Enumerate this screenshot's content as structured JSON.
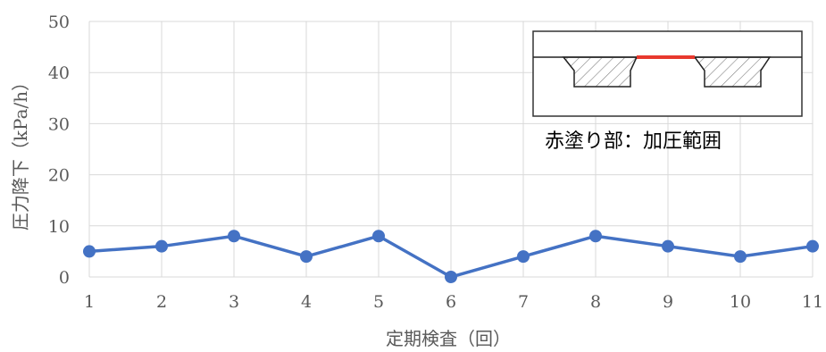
{
  "chart_data": {
    "type": "line",
    "x": [
      1,
      2,
      3,
      4,
      5,
      6,
      7,
      8,
      9,
      10,
      11
    ],
    "series": [
      {
        "values": [
          5,
          6,
          8,
          4,
          8,
          0,
          4,
          8,
          6,
          4,
          6
        ]
      }
    ],
    "xlabel": "定期検査（回）",
    "ylabel": "圧力降下（kPa/h）",
    "ylim": [
      0,
      50
    ],
    "yticks": [
      0,
      10,
      20,
      30,
      40,
      50
    ],
    "xticks": [
      "1",
      "2",
      "3",
      "4",
      "5",
      "6",
      "7",
      "8",
      "9",
      "10",
      "11"
    ],
    "grid": true,
    "colors": {
      "line": "#4472c4",
      "grid": "#d9d9d9",
      "pressurized": "#e8392e"
    }
  },
  "inset": {
    "caption": "赤塗り部：加圧範囲"
  }
}
